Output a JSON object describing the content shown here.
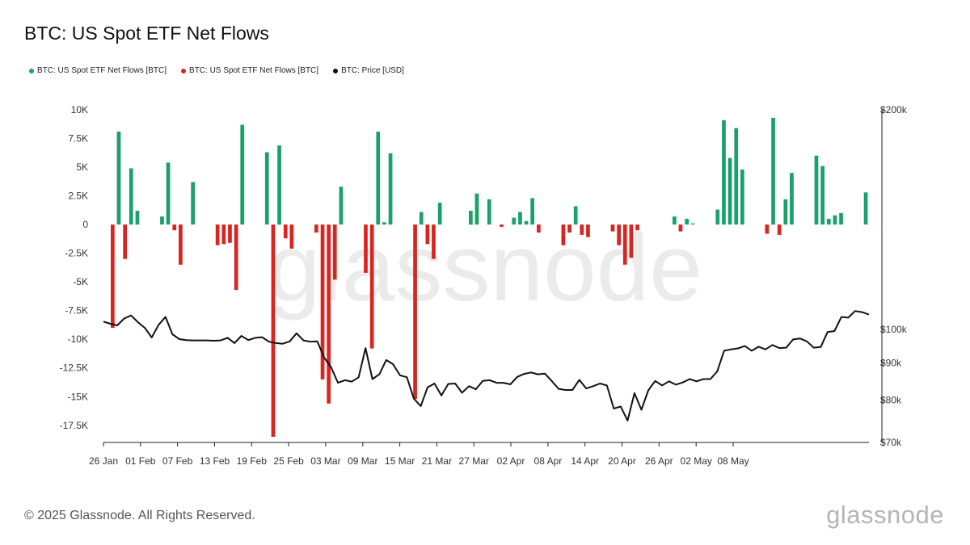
{
  "title": "BTC: US Spot ETF Net Flows",
  "legend": [
    {
      "label": "BTC: US Spot ETF Net Flows [BTC]",
      "color": "#1aa06a"
    },
    {
      "label": "BTC: US Spot ETF Net Flows [BTC]",
      "color": "#d9241f"
    },
    {
      "label": "BTC: Price [USD]",
      "color": "#111111"
    }
  ],
  "footer": "© 2025 Glassnode. All Rights Reserved.",
  "brand": "glassnode",
  "watermark": "glassnode",
  "colors": {
    "positive": "#1aa06a",
    "negative": "#d9241f",
    "price": "#111111"
  },
  "chart_data": {
    "type": "bar",
    "title": "BTC: US Spot ETF Net Flows",
    "x_ticks": [
      "26 Jan",
      "01 Feb",
      "07 Feb",
      "13 Feb",
      "19 Feb",
      "25 Feb",
      "03 Mar",
      "09 Mar",
      "15 Mar",
      "21 Mar",
      "27 Mar",
      "02 Apr",
      "08 Apr",
      "14 Apr",
      "20 Apr",
      "26 Apr",
      "02 May",
      "08 May"
    ],
    "y_left_ticks": [
      "10K",
      "7.5K",
      "5K",
      "2.5K",
      "0",
      "-2.5K",
      "-5K",
      "-7.5K",
      "-10K",
      "-12.5K",
      "-15K",
      "-17.5K"
    ],
    "y_left_range": [
      -18500,
      10000
    ],
    "y_right_ticks": [
      "$200k",
      "$100k",
      "$90k",
      "$80k",
      "$70k"
    ],
    "y_right_values": [
      200000,
      100000,
      90000,
      80000,
      70000
    ],
    "y_right_scale": "log",
    "legend_position": "top-left",
    "grid": false,
    "start_date": "26 Jan",
    "series": [
      {
        "name": "BTC: US Spot ETF Net Flows [BTC]",
        "type": "bar",
        "values": [
          0,
          -9000,
          8100,
          -3000,
          4900,
          1200,
          0,
          0,
          0,
          700,
          5400,
          -500,
          -3500,
          0,
          3700,
          0,
          0,
          0,
          -1800,
          -1700,
          -1600,
          -5700,
          8700,
          0,
          0,
          0,
          6300,
          -18500,
          6900,
          -1200,
          -2100,
          0,
          0,
          0,
          -700,
          -13500,
          -15600,
          -4800,
          3300,
          0,
          0,
          0,
          -4200,
          -10800,
          8100,
          200,
          6200,
          0,
          0,
          0,
          -15200,
          1100,
          -1700,
          -3000,
          1900,
          0,
          0,
          0,
          0,
          1200,
          2700,
          0,
          2200,
          0,
          -200,
          0,
          600,
          1100,
          300,
          2300,
          -700,
          0,
          0,
          0,
          -1800,
          -700,
          1600,
          -900,
          -1100,
          0,
          0,
          0,
          -600,
          -1800,
          -3500,
          -2900,
          -500,
          0,
          0,
          0,
          0,
          0,
          700,
          -600,
          500,
          100,
          0,
          0,
          0,
          1300,
          9100,
          5800,
          8400,
          4800,
          0,
          0,
          0,
          -800,
          9300,
          -900,
          2200,
          4500,
          0,
          0,
          0,
          6000,
          5100,
          500,
          800,
          1000,
          0,
          0,
          0,
          2800
        ]
      },
      {
        "name": "BTC: Price [USD]",
        "type": "line",
        "values": [
          102500,
          101800,
          101300,
          103500,
          104500,
          102300,
          100500,
          97500,
          101500,
          104000,
          98500,
          97000,
          96700,
          96600,
          96600,
          96600,
          96500,
          96600,
          97400,
          95800,
          98000,
          96700,
          97400,
          97600,
          96200,
          95800,
          95600,
          96300,
          98800,
          96600,
          96200,
          96300,
          91500,
          88800,
          84500,
          85200,
          84800,
          86000,
          94300,
          85500,
          86800,
          90800,
          89600,
          86500,
          86000,
          80400,
          78500,
          83300,
          84300,
          81200,
          84200,
          84300,
          81900,
          83600,
          82800,
          85000,
          85200,
          84500,
          84500,
          84100,
          86100,
          86900,
          87300,
          86800,
          87000,
          85000,
          82900,
          82600,
          82600,
          85300,
          83000,
          83600,
          84300,
          83800,
          77900,
          78400,
          75000,
          81800,
          77600,
          82500,
          85000,
          83800,
          84900,
          84000,
          84600,
          85500,
          84900,
          85500,
          85500,
          87600,
          93500,
          93900,
          94200,
          94900,
          93500,
          94700,
          93900,
          95200,
          94300,
          94400,
          96900,
          97200,
          96300,
          94400,
          94600,
          99200,
          99500,
          104000,
          103800,
          106000,
          105600,
          104800
        ]
      }
    ]
  }
}
